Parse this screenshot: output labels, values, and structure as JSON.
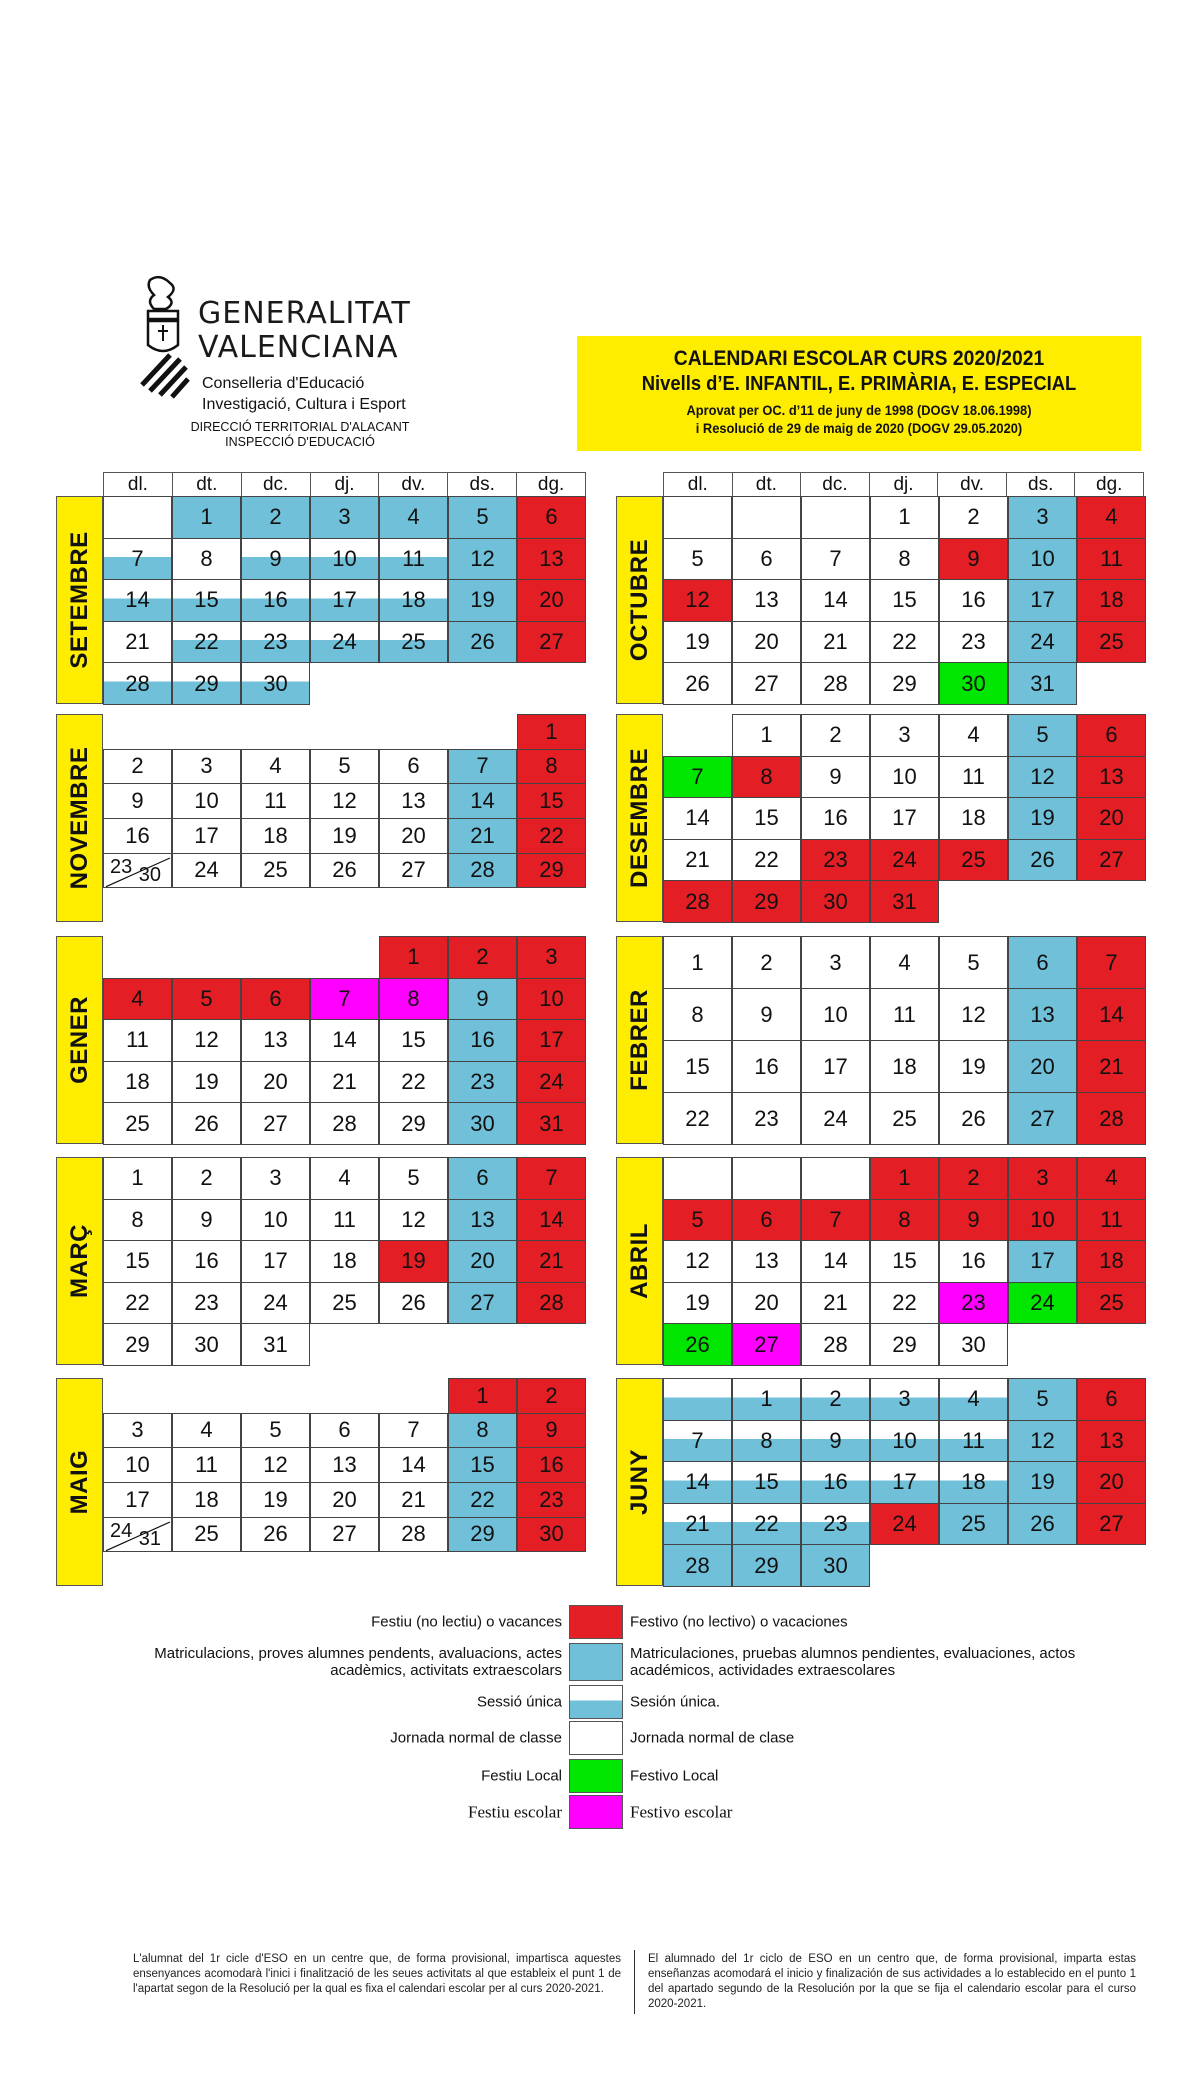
{
  "header": {
    "org_line1": "GENERALITAT",
    "org_line2": "VALENCIANA",
    "dept_line1": "Conselleria d'Educació",
    "dept_line2": "Investigació, Cultura i Esport",
    "office_line1": "DIRECCIÓ TERRITORIAL D'ALACANT",
    "office_line2": "INSPECCIÓ D'EDUCACIÓ"
  },
  "title": {
    "line1": "CALENDARI ESCOLAR CURS 2020/2021",
    "line2": "Nivells d’E. INFANTIL, E. PRIMÀRIA, E. ESPECIAL",
    "line3": "Aprovat per OC. d’11 de juny de 1998 (DOGV 18.06.1998)",
    "line4": "i Resolució de 29 de maig de 2020 (DOGV 29.05.2020)"
  },
  "weekdays": [
    "dl.",
    "dt.",
    "dc.",
    "dj.",
    "dv.",
    "ds.",
    "dg."
  ],
  "colors": {
    "red": "#e31e24",
    "blue": "#6fc0d8",
    "yellow": "#ffed00",
    "green": "#00e600",
    "magenta": "#ff00ff"
  },
  "months": [
    {
      "name": "SETEMBRE",
      "lead": [
        "w"
      ],
      "days": "bbbbbrswsssbrsssssbrwssssbrsss"
    },
    {
      "name": "OCTUBRE",
      "lead": [
        "w",
        "w",
        "w"
      ],
      "days": "wwbrwwwwrbrrwwwwbrwwwwwbrwwwwgb"
    },
    {
      "name": "NOVEMBRE",
      "lead": [
        "none",
        "none",
        "none",
        "none",
        "none",
        "none"
      ],
      "days": "rwwwwwbrwwwwwbrwwwwwbrwwwwwbrw",
      "split": {
        "day": 23,
        "second": 30
      }
    },
    {
      "name": "DESEMBRE",
      "lead": [
        "none"
      ],
      "days": "wwwwbrgrwwwbrwwwwwbrwwrrrbrrrrr"
    },
    {
      "name": "GENER",
      "lead": [
        "none",
        "none",
        "none",
        "none"
      ],
      "days": "rrrrrrmmbrwwwwwbrwwwwwbrwwwwwbr"
    },
    {
      "name": "FEBRER",
      "lead": [],
      "days": "wwwwwbrwwwwwbrwwwwwbrwwwwwbr"
    },
    {
      "name": "MARÇ",
      "lead": [],
      "days": "wwwwwbrwwwwwbrwwwwrbrwwwwwbrwww"
    },
    {
      "name": "ABRIL",
      "lead": [
        "w",
        "w",
        "w"
      ],
      "days": "rrrrrrrrrrrwwwwwbrwwwwmgrgmwww"
    },
    {
      "name": "MAIG",
      "lead": [
        "none",
        "none",
        "none",
        "none",
        "none"
      ],
      "days": "rrwwwwwbrwwwwwbrwwwwwbrwwwwwbrw",
      "split": {
        "day": 24,
        "second": 31
      }
    },
    {
      "name": "JUNY",
      "lead": [
        "s"
      ],
      "days": "ssssbrsssssbrsssssbrsssrbbrbbb"
    }
  ],
  "legend": [
    {
      "ca": "Festiu (no lectiu) o vacances",
      "es": "Festivo (no lectivo) o vacaciones",
      "type": "r"
    },
    {
      "ca": "Matriculacions, proves alumnes pendents, avaluacions, actes\nacadèmics, activitats extraescolars",
      "es": "Matriculaciones, pruebas alumnos pendientes, evaluaciones, actos\nacadémicos, actividades extraescolares",
      "type": "b"
    },
    {
      "ca": "Sessió única",
      "es": "Sesión única.",
      "type": "s"
    },
    {
      "ca": "Jornada normal de classe",
      "es": "Jornada normal de clase",
      "type": "w"
    },
    {
      "ca": "Festiu Local",
      "es": "Festivo Local",
      "type": "g"
    },
    {
      "ca": "Festiu escolar",
      "es": "Festivo escolar",
      "type": "m"
    }
  ],
  "footer": {
    "ca": "L'alumnat del 1r cicle d'ESO en un centre que, de forma provisional, impartisca aquestes ensenyances acomodarà l'inici i finalització de les seues activitats al que estableix el punt 1 de l'apartat segon de la Resolució per la qual es fixa el calendari escolar per al curs 2020-2021.",
    "es": "El alumnado del 1r ciclo de ESO en un centro que, de forma provisional, imparta estas enseñanzas acomodará el inicio y finalización de sus actividades a lo establecido en el punto 1 del apartado segundo de la Resolución por la que se fija el calendario escolar para el curso 2020-2021."
  }
}
